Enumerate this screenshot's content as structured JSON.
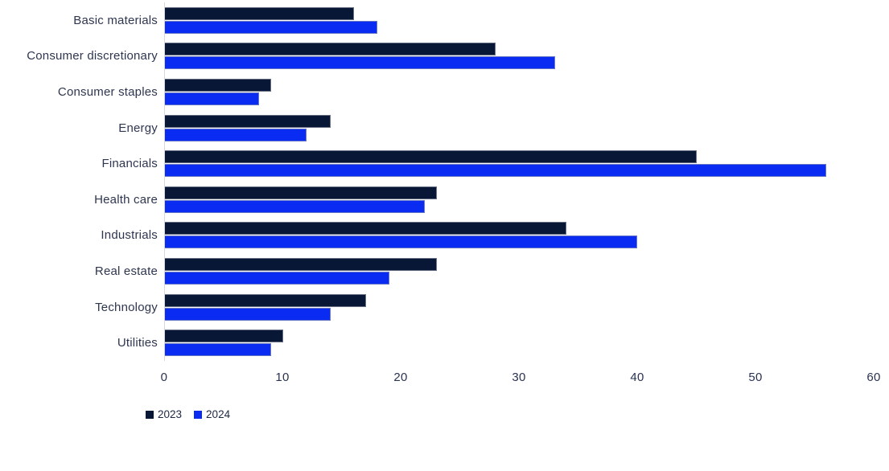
{
  "chart_data": {
    "type": "bar",
    "orientation": "horizontal",
    "title": "",
    "xlabel": "",
    "ylabel": "",
    "categories": [
      "Basic materials",
      "Consumer discretionary",
      "Consumer staples",
      "Energy",
      "Financials",
      "Health care",
      "Industrials",
      "Real estate",
      "Technology",
      "Utilities"
    ],
    "series": [
      {
        "name": "2023",
        "color": "#071735",
        "values": [
          16,
          28,
          9,
          14,
          45,
          23,
          34,
          23,
          17,
          10
        ]
      },
      {
        "name": "2024",
        "color": "#0a2bf2",
        "values": [
          18,
          33,
          8,
          12,
          56,
          22,
          40,
          19,
          14,
          9
        ]
      }
    ],
    "xlim": [
      0,
      60
    ],
    "xticks": [
      0,
      10,
      20,
      30,
      40,
      50,
      60
    ],
    "grid": false,
    "legend_position": "bottom-left"
  },
  "colors": {
    "series_2023": "#071735",
    "series_2024": "#0a2bf2",
    "axis_line": "#d8d8e0",
    "bar_outline": "#9a9fac",
    "text": "#2e3650",
    "background": "#ffffff"
  }
}
